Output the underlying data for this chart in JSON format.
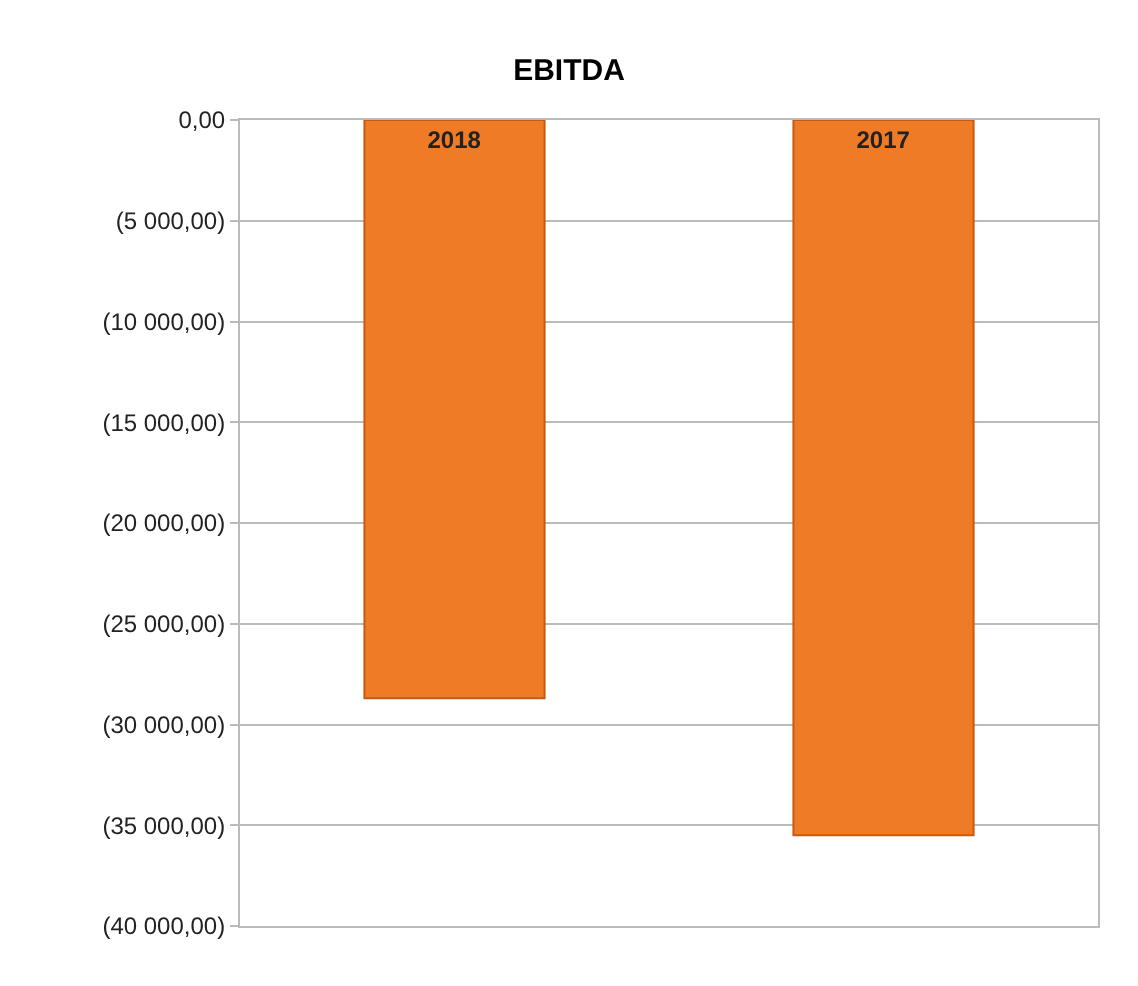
{
  "chart_data": {
    "type": "bar",
    "title": "EBITDA",
    "categories": [
      "2018",
      "2017"
    ],
    "values": [
      -28700,
      -35500
    ],
    "color": "#f07b26",
    "ylim": [
      -40000,
      0
    ],
    "yticks": [
      {
        "value": 0,
        "label": "0,00"
      },
      {
        "value": -5000,
        "label": "(5 000,00)"
      },
      {
        "value": -10000,
        "label": "(10 000,00)"
      },
      {
        "value": -15000,
        "label": "(15 000,00)"
      },
      {
        "value": -20000,
        "label": "(20 000,00)"
      },
      {
        "value": -25000,
        "label": "(25 000,00)"
      },
      {
        "value": -30000,
        "label": "(30 000,00)"
      },
      {
        "value": -35000,
        "label": "(35 000,00)"
      },
      {
        "value": -40000,
        "label": "(40 000,00)"
      }
    ],
    "grid": "y",
    "tick_labels": "y"
  }
}
